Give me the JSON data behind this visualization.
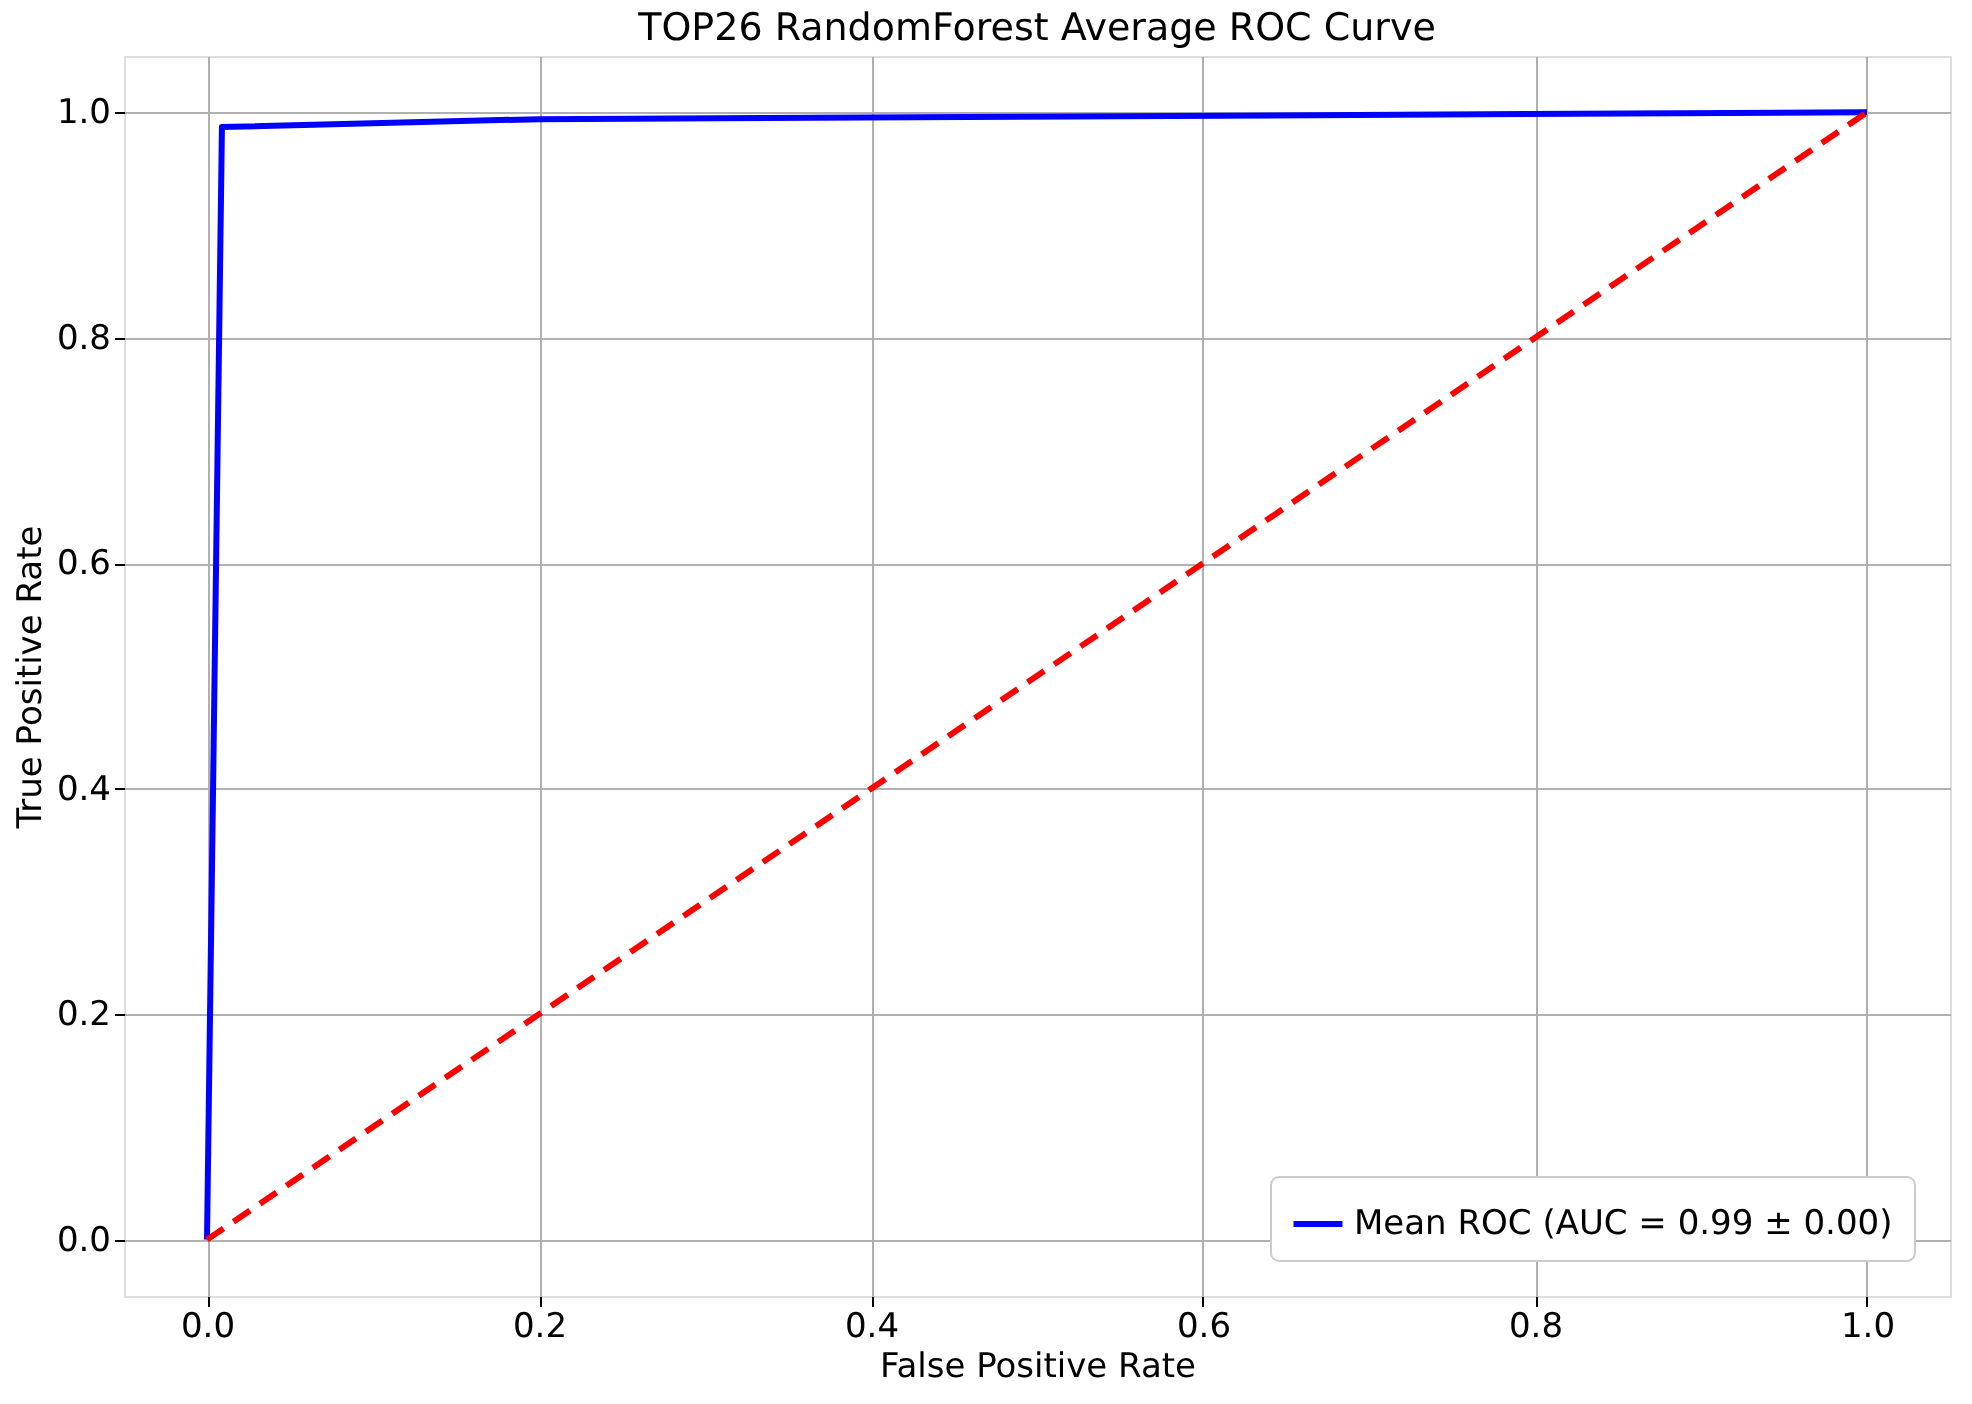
{
  "chart_data": {
    "type": "line",
    "title": "TOP26 RandomForest Average ROC Curve",
    "xlabel": "False Positive Rate",
    "ylabel": "True Positive Rate",
    "series": [
      {
        "name": "Mean ROC (AUC = 0.99 ± 0.00)",
        "color": "#0000ff",
        "x": [
          0,
          0.009,
          0.2,
          1.0
        ],
        "values": [
          0,
          0.987,
          0.994,
          1.0
        ],
        "line_style": "solid"
      },
      {
        "color": "#ff0000",
        "x": [
          0,
          1
        ],
        "values": [
          0,
          1
        ],
        "line_style": "dashed"
      }
    ],
    "xlim": [
      -0.05,
      1.05
    ],
    "ylim": [
      -0.05,
      1.05
    ],
    "xticks": [
      {
        "value": 0,
        "label": "0.0"
      },
      0.2,
      0.4,
      0.6,
      0.8,
      {
        "value": 1,
        "label": "1.0"
      }
    ],
    "yticks": [
      {
        "value": 0,
        "label": "0.0"
      },
      0.2,
      0.4,
      0.6,
      0.8,
      {
        "value": 1,
        "label": "1.0"
      }
    ],
    "grid": true,
    "legend": "bottom right",
    "marker": "none"
  }
}
